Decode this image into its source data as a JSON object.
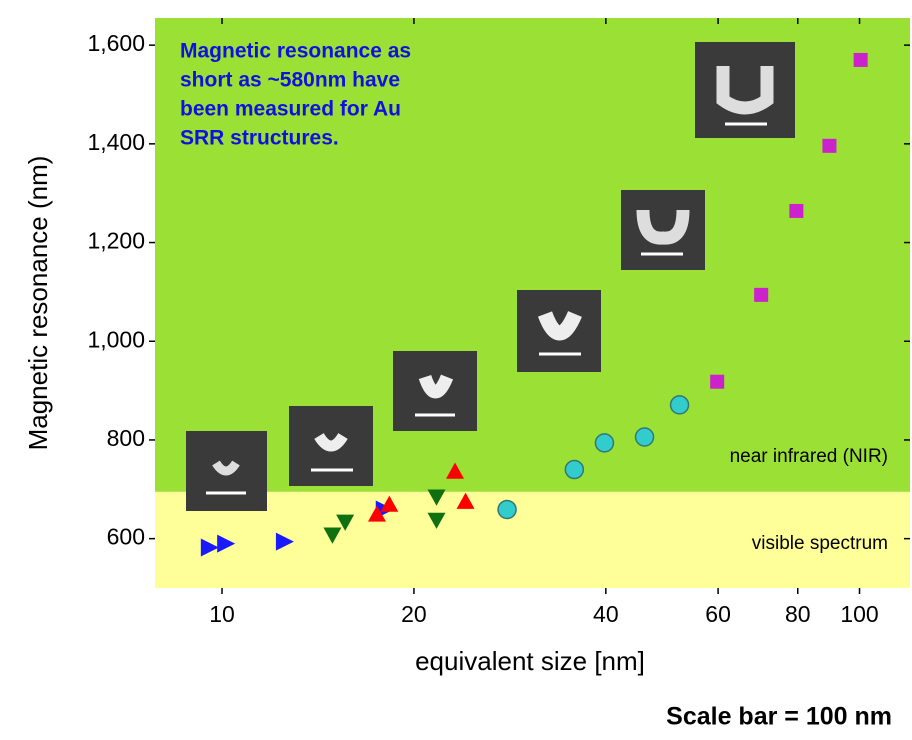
{
  "chart_data": {
    "type": "scatter",
    "x_label": "equivalent size [nm]",
    "y_label": "Magnetic resonance (nm)",
    "annotation": [
      "Magnetic resonance as",
      "short as ~580nm have",
      "been measured for Au",
      "SRR structures."
    ],
    "footnote": "Scale bar = 100 nm",
    "xscale": "log",
    "xlim": [
      7.85,
      120
    ],
    "ylim": [
      500,
      1655
    ],
    "xticks": [
      10,
      20,
      40,
      60,
      80,
      100
    ],
    "yticks": [
      600,
      800,
      {
        "value": 1000,
        "label": "1,000"
      },
      {
        "value": 1200,
        "label": "1,200"
      },
      {
        "value": 1400,
        "label": "1,400"
      },
      {
        "value": 1600,
        "label": "1,600"
      }
    ],
    "regions": [
      {
        "label": "visible spectrum",
        "range": [
          500,
          695
        ],
        "color": "#ffff99"
      },
      {
        "label": "near infrared (NIR)",
        "range": [
          695,
          1655
        ],
        "color": "#9be034"
      }
    ],
    "series": [
      {
        "marker": "triangle-right",
        "color": "#1a1aff",
        "x": [
          9.57,
          10.15,
          12.55,
          18.0
        ],
        "values": [
          582,
          590,
          594,
          659
        ]
      },
      {
        "marker": "triangle-down",
        "color": "#107010",
        "x": [
          14.9,
          15.6,
          21.7,
          21.7
        ],
        "values": [
          608,
          634,
          685,
          638
        ]
      },
      {
        "marker": "triangle-up",
        "color": "#ff0000",
        "x": [
          17.5,
          18.3,
          23.2,
          24.1
        ],
        "values": [
          649,
          669,
          736,
          675
        ]
      },
      {
        "marker": "circle",
        "color": "#33cccc",
        "x": [
          28.0,
          35.7,
          39.8,
          46.0,
          52.2
        ],
        "values": [
          659,
          740,
          794,
          806,
          871
        ]
      },
      {
        "marker": "square",
        "color": "#cc22cc",
        "x": [
          59.8,
          70.1,
          79.6,
          89.7,
          100.4
        ],
        "values": [
          918,
          1094,
          1264,
          1396,
          1570
        ]
      }
    ]
  }
}
